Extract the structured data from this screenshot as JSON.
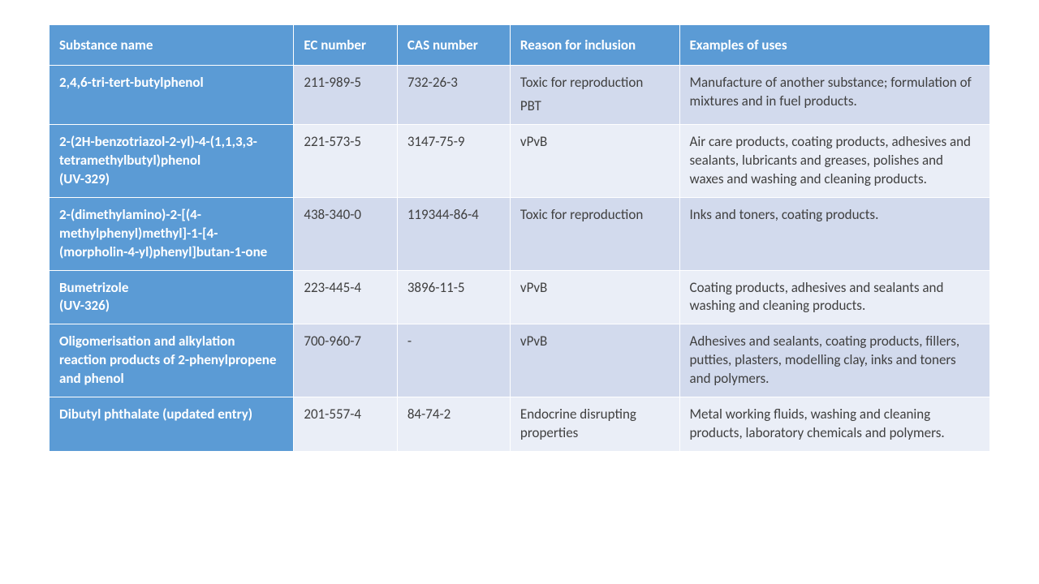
{
  "table": {
    "header_bg": "#5b9bd5",
    "header_fg": "#ffffff",
    "row_odd_bg": "#d2daed",
    "row_even_bg": "#eaeef7",
    "name_col_bg": "#5b9bd5",
    "name_col_fg": "#ffffff",
    "border_color": "#ffffff",
    "font_family": "Calibri",
    "font_size_pt": 13,
    "columns": [
      {
        "key": "name",
        "label": "Substance name",
        "width_pct": 26
      },
      {
        "key": "ec",
        "label": "EC number",
        "width_pct": 11
      },
      {
        "key": "cas",
        "label": "CAS number",
        "width_pct": 12
      },
      {
        "key": "reason",
        "label": "Reason for inclusion",
        "width_pct": 18
      },
      {
        "key": "uses",
        "label": "Examples of uses",
        "width_pct": 33
      }
    ],
    "rows": [
      {
        "name": "2,4,6-tri-tert-butylphenol",
        "ec": "211-989-5",
        "cas": "732-26-3",
        "reason_lines": [
          "Toxic for reproduction",
          "PBT"
        ],
        "uses": "Manufacture of another substance; formulation of mixtures and in fuel products."
      },
      {
        "name": "2-(2H-benzotriazol-2-yl)-4-(1,1,3,3-tetramethylbutyl)phenol\n(UV-329)",
        "ec": "221-573-5",
        "cas": "3147-75-9",
        "reason_lines": [
          "vPvB"
        ],
        "uses": "Air care products, coating products, adhesives and sealants, lubricants and greases, polishes and waxes and washing and cleaning products."
      },
      {
        "name": "2-(dimethylamino)-2-[(4-methylphenyl)methyl]-1-[4-(morpholin-4-yl)phenyl]butan-1-one",
        "ec": "438-340-0",
        "cas": "119344-86-4",
        "reason_lines": [
          "Toxic for reproduction"
        ],
        "uses": "Inks and toners, coating products."
      },
      {
        "name": "Bumetrizole\n(UV-326)",
        "ec": "223-445-4",
        "cas": "3896-11-5",
        "reason_lines": [
          "vPvB"
        ],
        "uses": "Coating products, adhesives and sealants and washing and cleaning products."
      },
      {
        "name": "Oligomerisation and alkylation reaction products of 2-phenylpropene and phenol",
        "ec": "700-960-7",
        "cas": "-",
        "reason_lines": [
          "vPvB"
        ],
        "uses": "Adhesives and sealants, coating products, fillers, putties, plasters, modelling clay, inks and toners and polymers."
      },
      {
        "name": "Dibutyl phthalate (updated entry)",
        "ec": "201-557-4",
        "cas": "84-74-2",
        "reason_lines": [
          "Endocrine disrupting properties"
        ],
        "uses": "Metal working fluids, washing and cleaning products, laboratory chemicals and polymers."
      }
    ]
  }
}
